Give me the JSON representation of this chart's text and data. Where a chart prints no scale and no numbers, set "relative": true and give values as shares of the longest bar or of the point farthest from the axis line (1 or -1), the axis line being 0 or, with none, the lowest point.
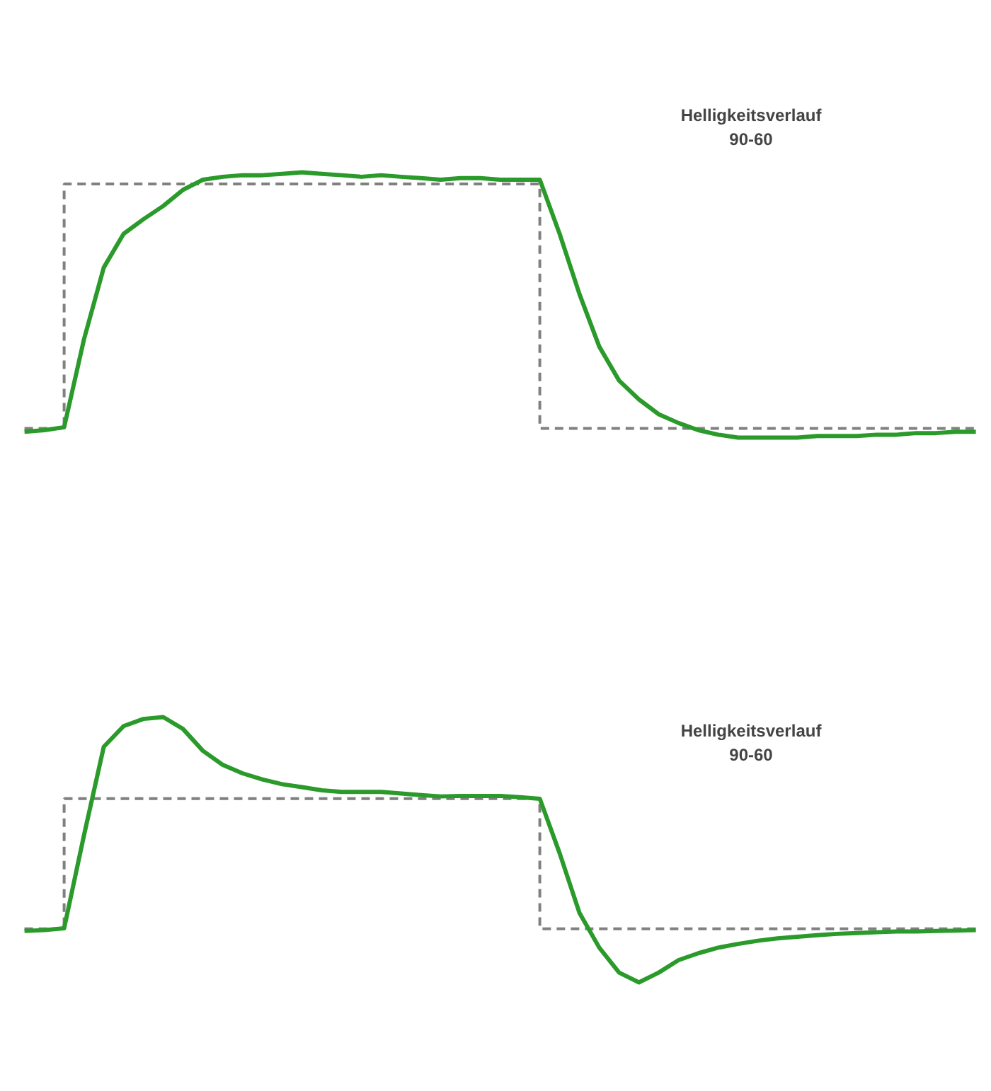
{
  "chart_data": [
    {
      "type": "line",
      "relative": true,
      "annotations": [
        "Helligkeitsverlauf\n90-60"
      ],
      "categories": [
        null,
        null,
        null,
        null,
        null,
        null,
        null,
        null,
        null,
        null,
        null,
        null,
        null,
        null,
        null,
        null,
        null,
        null,
        null,
        null,
        null,
        null,
        null,
        null,
        null,
        null,
        null,
        null,
        null,
        null,
        null,
        null,
        null,
        null,
        null,
        null,
        null,
        null,
        null,
        null,
        null,
        null,
        null,
        null,
        null,
        null,
        null,
        null,
        null
      ],
      "series": [
        {
          "type": "step",
          "line_style": "dashed",
          "color": "#808080",
          "values": [
            0.035,
            0.035,
            0.956,
            0.956,
            0.956,
            0.956,
            0.956,
            0.956,
            0.956,
            0.956,
            0.956,
            0.956,
            0.956,
            0.956,
            0.956,
            0.956,
            0.956,
            0.956,
            0.956,
            0.956,
            0.956,
            0.956,
            0.956,
            0.956,
            0.956,
            0.956,
            0.035,
            0.035,
            0.035,
            0.035,
            0.035,
            0.035,
            0.035,
            0.035,
            0.035,
            0.035,
            0.035,
            0.035,
            0.035,
            0.035,
            0.035,
            0.035,
            0.035,
            0.035,
            0.035,
            0.035,
            0.035,
            0.035,
            0.035
          ]
        },
        {
          "line_style": "solid",
          "color": "#2a9a2a",
          "values": [
            0.022,
            0.028,
            0.039,
            0.37,
            0.641,
            0.768,
            0.823,
            0.873,
            0.934,
            0.972,
            0.983,
            0.989,
            0.989,
            0.994,
            1.0,
            0.994,
            0.989,
            0.983,
            0.989,
            0.983,
            0.978,
            0.972,
            0.978,
            0.978,
            0.972,
            0.972,
            0.972,
            0.768,
            0.541,
            0.343,
            0.215,
            0.144,
            0.088,
            0.055,
            0.028,
            0.011,
            0.0,
            0.0,
            0.0,
            0.0,
            0.006,
            0.006,
            0.006,
            0.011,
            0.011,
            0.017,
            0.017,
            0.022,
            0.022
          ]
        }
      ]
    },
    {
      "type": "line",
      "relative": true,
      "annotations": [
        "Helligkeitsverlauf\n90-60"
      ],
      "categories": [
        null,
        null,
        null,
        null,
        null,
        null,
        null,
        null,
        null,
        null,
        null,
        null,
        null,
        null,
        null,
        null,
        null,
        null,
        null,
        null,
        null,
        null,
        null,
        null,
        null,
        null,
        null,
        null,
        null,
        null,
        null,
        null,
        null,
        null,
        null,
        null,
        null,
        null,
        null,
        null,
        null,
        null,
        null,
        null,
        null,
        null,
        null,
        null,
        null
      ],
      "series": [
        {
          "type": "step",
          "line_style": "dashed",
          "color": "#808080",
          "values": [
            0.202,
            0.202,
            0.693,
            0.693,
            0.693,
            0.693,
            0.693,
            0.693,
            0.693,
            0.693,
            0.693,
            0.693,
            0.693,
            0.693,
            0.693,
            0.693,
            0.693,
            0.693,
            0.693,
            0.693,
            0.693,
            0.693,
            0.693,
            0.693,
            0.693,
            0.693,
            0.202,
            0.202,
            0.202,
            0.202,
            0.202,
            0.202,
            0.202,
            0.202,
            0.202,
            0.202,
            0.202,
            0.202,
            0.202,
            0.202,
            0.202,
            0.202,
            0.202,
            0.202,
            0.202,
            0.202,
            0.202,
            0.202,
            0.202
          ]
        },
        {
          "line_style": "solid",
          "color": "#2a9a2a",
          "values": [
            0.194,
            0.197,
            0.204,
            0.554,
            0.888,
            0.966,
            0.993,
            1.0,
            0.955,
            0.873,
            0.82,
            0.788,
            0.765,
            0.747,
            0.736,
            0.724,
            0.718,
            0.718,
            0.718,
            0.712,
            0.706,
            0.701,
            0.703,
            0.703,
            0.703,
            0.698,
            0.692,
            0.487,
            0.262,
            0.131,
            0.037,
            0.0,
            0.037,
            0.084,
            0.11,
            0.131,
            0.145,
            0.157,
            0.166,
            0.172,
            0.178,
            0.183,
            0.186,
            0.189,
            0.192,
            0.192,
            0.194,
            0.195,
            0.197
          ]
        }
      ]
    }
  ]
}
